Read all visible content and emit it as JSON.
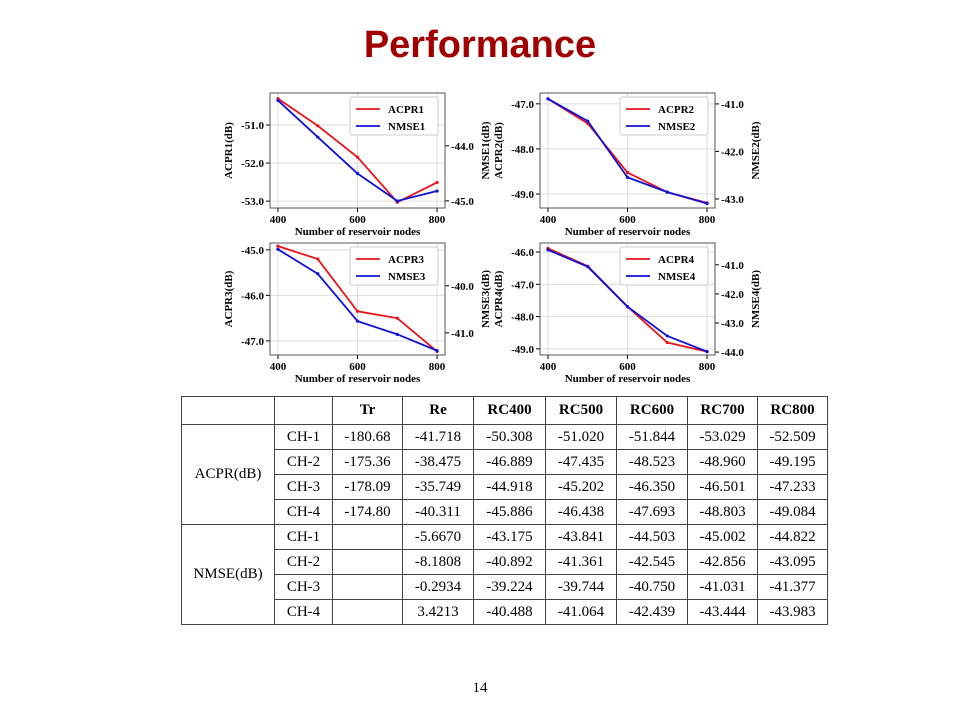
{
  "title": "Performance",
  "page_number": "14",
  "colors": {
    "title": "#a00000",
    "acpr": "#e8141b",
    "nmse": "#1010d8"
  },
  "chart_data": [
    {
      "type": "line",
      "xlabel": "Number of reservoir nodes",
      "ylabel": "ACPR1(dB)",
      "ylabel_right": "NMSE1(dB)",
      "x": [
        400,
        500,
        600,
        700,
        800
      ],
      "xticks": [
        "400",
        "600",
        "800"
      ],
      "xlim": [
        380,
        820
      ],
      "ylim": [
        -53.18,
        -50.16
      ],
      "yticks": [
        "-51.0",
        "-52.0",
        "-53.0"
      ],
      "ylim_right": [
        -45.13,
        -43.04
      ],
      "yticks_right": [
        "-44.0",
        "-45.0"
      ],
      "legend": "top-right",
      "grid": true,
      "series": [
        {
          "name": "ACPR1",
          "axis": "left",
          "values": [
            -50.308,
            -51.02,
            -51.844,
            -53.029,
            -52.509
          ]
        },
        {
          "name": "NMSE1",
          "axis": "right",
          "values": [
            -43.175,
            -43.841,
            -44.503,
            -45.002,
            -44.822
          ]
        }
      ]
    },
    {
      "type": "line",
      "xlabel": "Number of reservoir nodes",
      "ylabel": "ACPR2(dB)",
      "ylabel_right": "NMSE2(dB)",
      "x": [
        400,
        500,
        600,
        700,
        800
      ],
      "xticks": [
        "400",
        "600",
        "800"
      ],
      "xlim": [
        380,
        820
      ],
      "ylim": [
        -49.31,
        -46.76
      ],
      "yticks": [
        "-47.0",
        "-48.0",
        "-49.0"
      ],
      "ylim_right": [
        -43.19,
        -40.77
      ],
      "yticks_right": [
        "-41.0",
        "-42.0",
        "-43.0"
      ],
      "legend": "top-right",
      "grid": true,
      "series": [
        {
          "name": "ACPR2",
          "axis": "left",
          "values": [
            -46.889,
            -47.435,
            -48.523,
            -48.96,
            -49.195
          ]
        },
        {
          "name": "NMSE2",
          "axis": "right",
          "values": [
            -40.892,
            -41.361,
            -42.545,
            -42.856,
            -43.095
          ]
        }
      ]
    },
    {
      "type": "line",
      "xlabel": "Number of reservoir nodes",
      "ylabel": "ACPR3(dB)",
      "ylabel_right": "NMSE3(dB)",
      "x": [
        400,
        500,
        600,
        700,
        800
      ],
      "xticks": [
        "400",
        "600",
        "800"
      ],
      "xlim": [
        380,
        820
      ],
      "ylim": [
        -47.31,
        -44.85
      ],
      "yticks": [
        "-45.0",
        "-46.0",
        "-47.0"
      ],
      "ylim_right": [
        -41.47,
        -39.09
      ],
      "yticks_right": [
        "-40.0",
        "-41.0"
      ],
      "legend": "top-right",
      "grid": true,
      "series": [
        {
          "name": "ACPR3",
          "axis": "left",
          "values": [
            -44.918,
            -45.202,
            -46.35,
            -46.501,
            -47.233
          ]
        },
        {
          "name": "NMSE3",
          "axis": "right",
          "values": [
            -39.224,
            -39.744,
            -40.75,
            -41.031,
            -41.377
          ]
        }
      ]
    },
    {
      "type": "line",
      "xlabel": "Number of reservoir nodes",
      "ylabel": "ACPR4(dB)",
      "ylabel_right": "NMSE4(dB)",
      "x": [
        400,
        500,
        600,
        700,
        800
      ],
      "xticks": [
        "400",
        "600",
        "800"
      ],
      "xlim": [
        380,
        820
      ],
      "ylim": [
        -49.19,
        -45.72
      ],
      "yticks": [
        "-46.0",
        "-47.0",
        "-48.0",
        "-49.0"
      ],
      "ylim_right": [
        -44.1,
        -40.25
      ],
      "yticks_right": [
        "-41.0",
        "-42.0",
        "-43.0",
        "-44.0"
      ],
      "legend": "top-right",
      "grid": true,
      "series": [
        {
          "name": "ACPR4",
          "axis": "left",
          "values": [
            -45.886,
            -46.438,
            -47.693,
            -48.803,
            -49.084
          ]
        },
        {
          "name": "NMSE4",
          "axis": "right",
          "values": [
            -40.488,
            -41.064,
            -42.439,
            -43.444,
            -43.983
          ]
        }
      ]
    }
  ],
  "table": {
    "headers": [
      "",
      "",
      "Tr",
      "Re",
      "RC400",
      "RC500",
      "RC600",
      "RC700",
      "RC800"
    ],
    "groups": [
      {
        "label": "ACPR(dB)",
        "rows": [
          {
            "ch": "CH-1",
            "cells": [
              "-180.68",
              "-41.718",
              "-50.308",
              "-51.020",
              "-51.844",
              "-53.029",
              "-52.509"
            ]
          },
          {
            "ch": "CH-2",
            "cells": [
              "-175.36",
              "-38.475",
              "-46.889",
              "-47.435",
              "-48.523",
              "-48.960",
              "-49.195"
            ]
          },
          {
            "ch": "CH-3",
            "cells": [
              "-178.09",
              "-35.749",
              "-44.918",
              "-45.202",
              "-46.350",
              "-46.501",
              "-47.233"
            ]
          },
          {
            "ch": "CH-4",
            "cells": [
              "-174.80",
              "-40.311",
              "-45.886",
              "-46.438",
              "-47.693",
              "-48.803",
              "-49.084"
            ]
          }
        ]
      },
      {
        "label": "NMSE(dB)",
        "rows": [
          {
            "ch": "CH-1",
            "cells": [
              "",
              "-5.6670",
              "-43.175",
              "-43.841",
              "-44.503",
              "-45.002",
              "-44.822"
            ]
          },
          {
            "ch": "CH-2",
            "cells": [
              "",
              "-8.1808",
              "-40.892",
              "-41.361",
              "-42.545",
              "-42.856",
              "-43.095"
            ]
          },
          {
            "ch": "CH-3",
            "cells": [
              "",
              "-0.2934",
              "-39.224",
              "-39.744",
              "-40.750",
              "-41.031",
              "-41.377"
            ]
          },
          {
            "ch": "CH-4",
            "cells": [
              "",
              "3.4213",
              "-40.488",
              "-41.064",
              "-42.439",
              "-43.444",
              "-43.983"
            ]
          }
        ]
      }
    ]
  }
}
